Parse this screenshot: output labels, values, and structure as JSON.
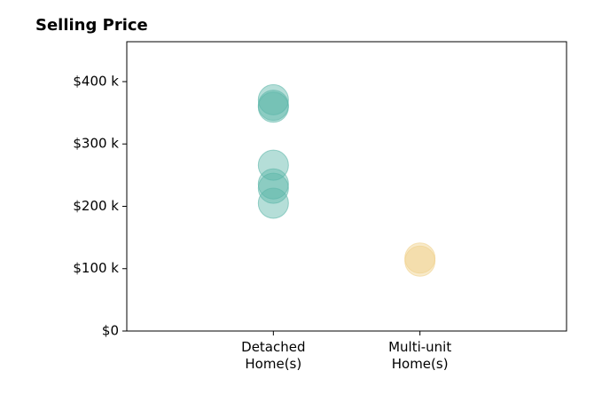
{
  "chart_data": {
    "type": "strip",
    "title": "Selling Price",
    "categories": [
      "Detached\nHome(s)",
      "Multi-unit\nHome(s)"
    ],
    "values": [
      [
        371000,
        362000,
        359000,
        266000,
        236000,
        229000,
        205000
      ],
      [
        117000,
        112000
      ]
    ],
    "colors": [
      "#5bb5a8",
      "#f0d08a"
    ],
    "ylim": [
      0,
      464000
    ],
    "yticks": [
      {
        "value": 0,
        "label": "$0"
      },
      {
        "value": 100000,
        "label": "$100 k"
      },
      {
        "value": 200000,
        "label": "$200 k"
      },
      {
        "value": 300000,
        "label": "$300 k"
      },
      {
        "value": 400000,
        "label": "$400 k"
      }
    ]
  }
}
